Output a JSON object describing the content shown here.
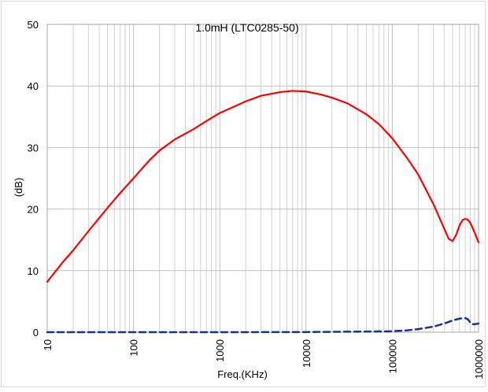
{
  "chart_data": {
    "type": "line",
    "title": "1.0mH (LTC0285-50)",
    "xlabel": "Freq.(KHz)",
    "ylabel": "(dB)",
    "x_scale": "log",
    "xlim": [
      10,
      1000000
    ],
    "ylim": [
      0,
      50
    ],
    "x_ticks": [
      "10",
      "100",
      "1000",
      "10000",
      "100000",
      "1000000"
    ],
    "y_ticks": [
      "0",
      "10",
      "20",
      "30",
      "40",
      "50"
    ],
    "grid": true,
    "legend": "none",
    "series": [
      {
        "style": "solid",
        "color": "#ff0000",
        "points": [
          [
            10,
            8.2
          ],
          [
            15,
            11.3
          ],
          [
            20,
            13.3
          ],
          [
            30,
            16.4
          ],
          [
            50,
            20.2
          ],
          [
            70,
            22.6
          ],
          [
            100,
            25.0
          ],
          [
            150,
            27.8
          ],
          [
            200,
            29.5
          ],
          [
            300,
            31.3
          ],
          [
            500,
            33.0
          ],
          [
            700,
            34.3
          ],
          [
            1000,
            35.6
          ],
          [
            1500,
            36.7
          ],
          [
            2000,
            37.5
          ],
          [
            3000,
            38.4
          ],
          [
            5000,
            39.0
          ],
          [
            7000,
            39.2
          ],
          [
            10000,
            39.1
          ],
          [
            15000,
            38.6
          ],
          [
            20000,
            38.1
          ],
          [
            30000,
            37.2
          ],
          [
            50000,
            35.4
          ],
          [
            70000,
            33.8
          ],
          [
            100000,
            31.5
          ],
          [
            150000,
            28.2
          ],
          [
            200000,
            25.6
          ],
          [
            300000,
            20.8
          ],
          [
            400000,
            16.8
          ],
          [
            450000,
            15.2
          ],
          [
            500000,
            14.8
          ],
          [
            550000,
            15.8
          ],
          [
            600000,
            17.3
          ],
          [
            650000,
            18.2
          ],
          [
            700000,
            18.4
          ],
          [
            750000,
            18.3
          ],
          [
            800000,
            17.8
          ],
          [
            900000,
            16.2
          ],
          [
            1000000,
            14.6
          ]
        ]
      },
      {
        "style": "dashed",
        "color": "#1f2f8f",
        "points": [
          [
            10,
            0
          ],
          [
            1000,
            0
          ],
          [
            10000,
            0.02
          ],
          [
            30000,
            0.08
          ],
          [
            50000,
            0.1
          ],
          [
            100000,
            0.15
          ],
          [
            150000,
            0.3
          ],
          [
            200000,
            0.5
          ],
          [
            300000,
            0.9
          ],
          [
            400000,
            1.4
          ],
          [
            500000,
            1.9
          ],
          [
            600000,
            2.2
          ],
          [
            700000,
            2.3
          ],
          [
            750000,
            2.1
          ],
          [
            800000,
            1.6
          ],
          [
            850000,
            1.3
          ],
          [
            900000,
            1.3
          ],
          [
            1000000,
            1.4
          ]
        ]
      }
    ]
  }
}
